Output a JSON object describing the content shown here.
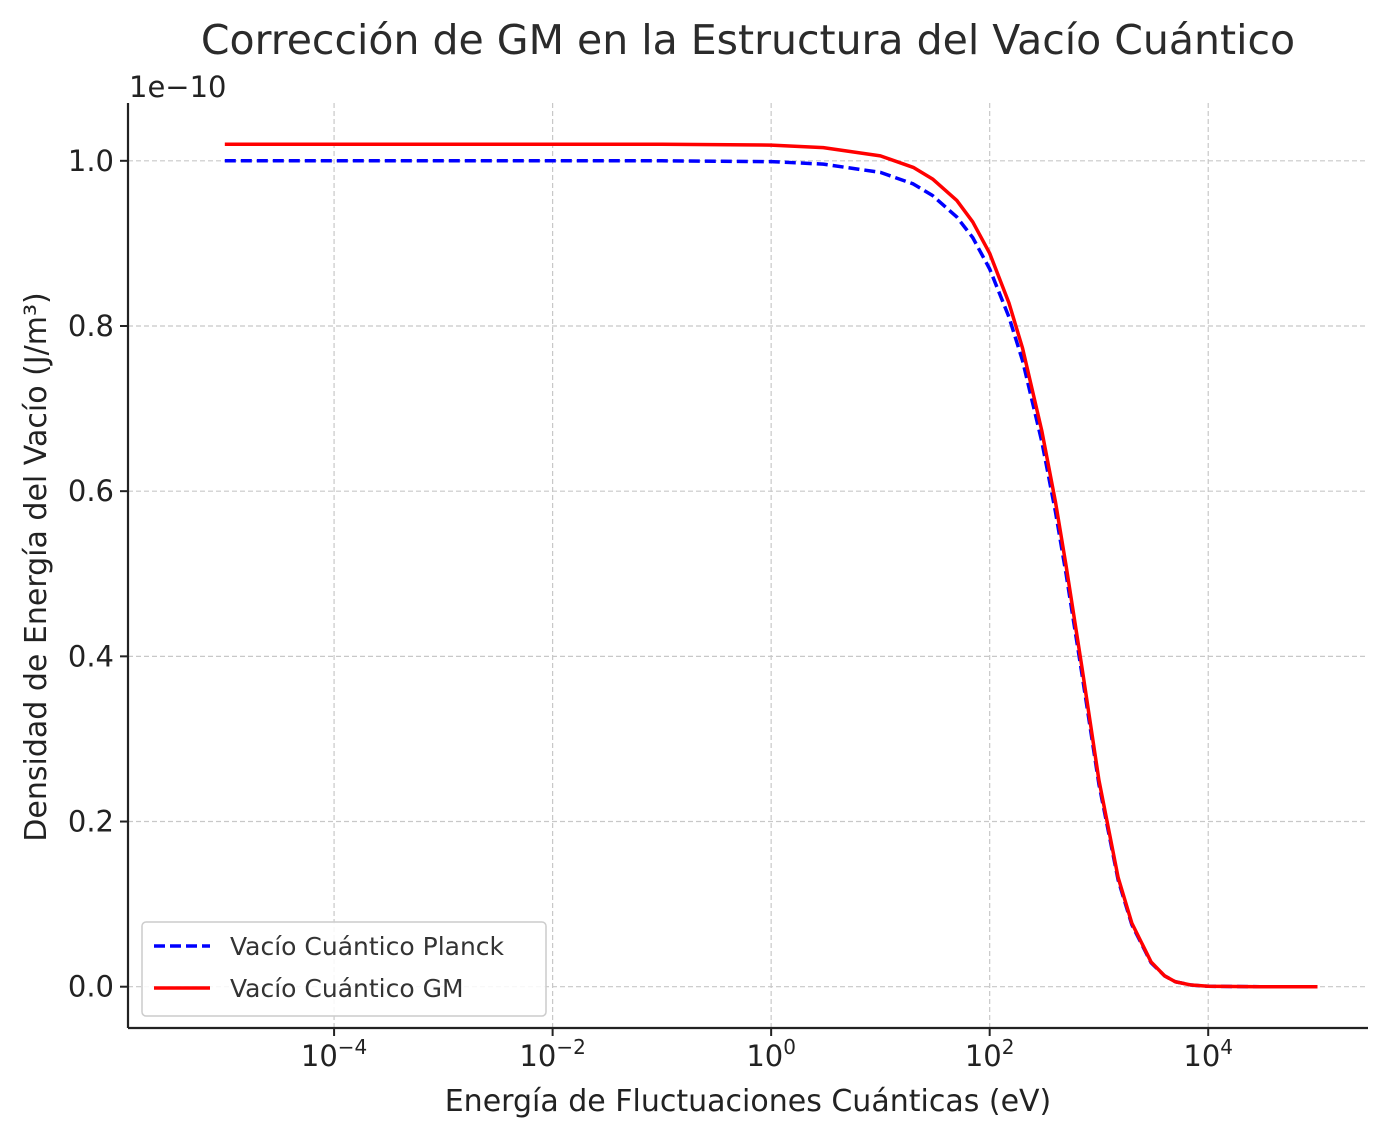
{
  "chart_data": {
    "type": "line",
    "title": "Corrección de GM en la Estructura del Vacío Cuántico",
    "xlabel": "Energía de Fluctuaciones Cuánticas (eV)",
    "ylabel": "Densidad de Energía del Vacío (J/m³)",
    "y_offset_label": "1e−10",
    "x_scale": "log",
    "xlim": [
      1.3e-06,
      290000.0
    ],
    "ylim": [
      -0.05,
      1.07
    ],
    "y_multiplier": 1e-10,
    "grid": true,
    "legend_position": "lower-left",
    "x_ticks": [
      {
        "value": 0.0001,
        "base": "10",
        "exp": "−4"
      },
      {
        "value": 0.01,
        "base": "10",
        "exp": "−2"
      },
      {
        "value": 1,
        "base": "10",
        "exp": "0"
      },
      {
        "value": 100,
        "base": "10",
        "exp": "2"
      },
      {
        "value": 10000,
        "base": "10",
        "exp": "4"
      }
    ],
    "y_ticks": [
      {
        "value": 0.0,
        "label": "0.0"
      },
      {
        "value": 0.2,
        "label": "0.2"
      },
      {
        "value": 0.4,
        "label": "0.4"
      },
      {
        "value": 0.6,
        "label": "0.6"
      },
      {
        "value": 0.8,
        "label": "0.8"
      },
      {
        "value": 1.0,
        "label": "1.0"
      }
    ],
    "x": [
      1e-05,
      0.0001,
      0.001,
      0.01,
      0.1,
      1,
      3,
      10,
      20,
      30,
      50,
      70,
      100,
      150,
      200,
      300,
      400,
      500,
      700,
      1000,
      1500,
      2000,
      3000,
      4000,
      5000,
      7000,
      10000,
      30000,
      100000
    ],
    "series": [
      {
        "name": "Vacío Cuántico Planck",
        "color": "#0000ff",
        "style": "dashed",
        "values": [
          1.0,
          1.0,
          1.0,
          1.0,
          1.0,
          0.999,
          0.996,
          0.986,
          0.972,
          0.958,
          0.932,
          0.907,
          0.869,
          0.811,
          0.758,
          0.66,
          0.575,
          0.5,
          0.378,
          0.245,
          0.129,
          0.075,
          0.029,
          0.013,
          0.006,
          0.002,
          0.0005,
          0.0,
          0.0
        ]
      },
      {
        "name": "Vacío Cuántico GM",
        "color": "#ff0000",
        "style": "solid",
        "values": [
          1.02,
          1.02,
          1.02,
          1.02,
          1.02,
          1.019,
          1.016,
          1.006,
          0.992,
          0.978,
          0.952,
          0.926,
          0.888,
          0.828,
          0.773,
          0.673,
          0.587,
          0.51,
          0.386,
          0.25,
          0.132,
          0.077,
          0.03,
          0.013,
          0.006,
          0.002,
          0.0005,
          0.0,
          0.0
        ]
      }
    ]
  }
}
